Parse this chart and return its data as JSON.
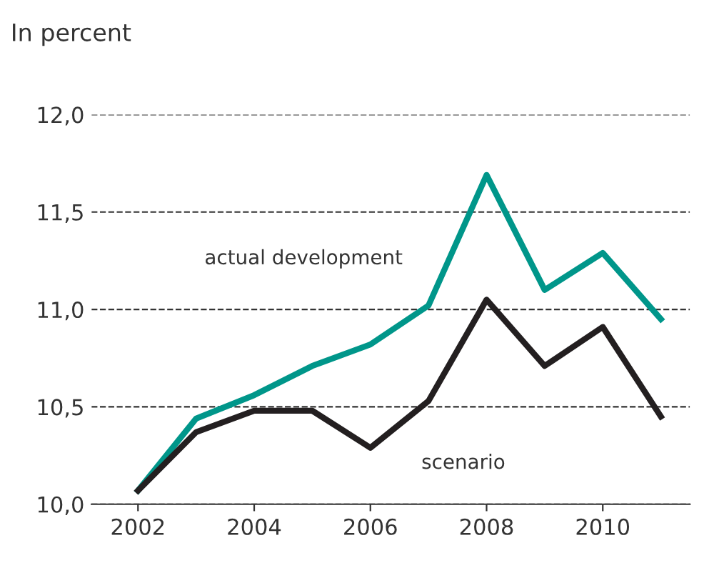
{
  "chart_data": {
    "type": "line",
    "title": "In percent",
    "x": [
      2002,
      2003,
      2004,
      2005,
      2006,
      2007,
      2008,
      2009,
      2010,
      2011
    ],
    "series": [
      {
        "name": "actual development",
        "color": "#00968a",
        "values": [
          10.07,
          10.44,
          10.56,
          10.71,
          10.82,
          11.02,
          11.69,
          11.1,
          11.29,
          10.95
        ]
      },
      {
        "name": "scenario",
        "color": "#231f20",
        "values": [
          10.07,
          10.37,
          10.48,
          10.48,
          10.29,
          10.53,
          11.05,
          10.71,
          10.91,
          10.45
        ]
      }
    ],
    "xlim": [
      2001.2,
      2011.5
    ],
    "xticks": [
      2002,
      2004,
      2006,
      2008,
      2010
    ],
    "ylim": [
      10.0,
      12.0
    ],
    "yticks": [
      {
        "value": 10.0,
        "label": "10,0"
      },
      {
        "value": 10.5,
        "label": "10,5"
      },
      {
        "value": 11.0,
        "label": "11,0"
      },
      {
        "value": 11.5,
        "label": "11,5"
      },
      {
        "value": 12.0,
        "label": "12,0"
      }
    ],
    "grid": "y",
    "line_style": "solid",
    "marker": "none"
  }
}
